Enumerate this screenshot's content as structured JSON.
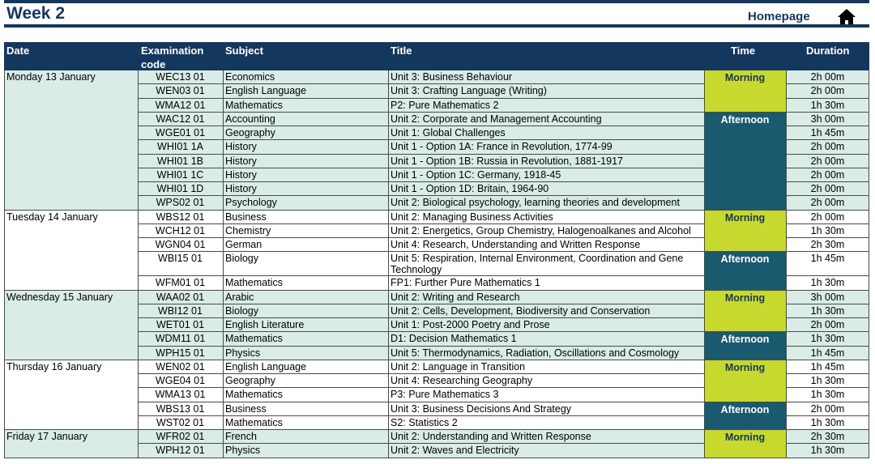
{
  "page_title": "Week 2",
  "homepage_label": "Homepage",
  "icons": {
    "home": "home-icon"
  },
  "colors": {
    "navy": "#14375e",
    "morning": "#c7d92e",
    "afternoon": "#1a5a6e",
    "light": "#d9ece6"
  },
  "headers": {
    "date": "Date",
    "code": "Examination code",
    "subject": "Subject",
    "title": "Title",
    "time": "Time",
    "duration": "Duration"
  },
  "days": [
    {
      "date": "Monday 13 January",
      "rows": [
        {
          "code": "WEC13 01",
          "subject": "Economics",
          "title": "Unit 3: Business Behaviour",
          "duration": "2h 00m"
        },
        {
          "code": "WEN03 01",
          "subject": "English Language",
          "title": "Unit 3: Crafting Language (Writing)",
          "duration": "2h 00m"
        },
        {
          "code": "WMA12 01",
          "subject": "Mathematics",
          "title": "P2: Pure Mathematics 2",
          "duration": "1h 30m"
        },
        {
          "code": "WAC12 01",
          "subject": "Accounting",
          "title": "Unit 2: Corporate and Management Accounting",
          "duration": "3h 00m"
        },
        {
          "code": "WGE01 01",
          "subject": "Geography",
          "title": "Unit 1: Global Challenges",
          "duration": "1h 45m"
        },
        {
          "code": "WHI01 1A",
          "subject": "History",
          "title": "Unit 1 - Option 1A: France in Revolution, 1774-99",
          "duration": "2h 00m"
        },
        {
          "code": "WHI01 1B",
          "subject": "History",
          "title": "Unit 1 - Option 1B: Russia in Revolution, 1881-1917",
          "duration": "2h 00m"
        },
        {
          "code": "WHI01 1C",
          "subject": "History",
          "title": "Unit 1 - Option 1C: Germany, 1918-45",
          "duration": "2h 00m"
        },
        {
          "code": "WHI01 1D",
          "subject": "History",
          "title": "Unit 1 - Option 1D: Britain, 1964-90",
          "duration": "2h 00m"
        },
        {
          "code": "WPS02 01",
          "subject": "Psychology",
          "title": "Unit 2: Biological psychology, learning theories and development",
          "duration": "2h 00m"
        }
      ],
      "sessions": [
        {
          "label": "Morning",
          "kind": "morning",
          "start": 0,
          "count": 3
        },
        {
          "label": "Afternoon",
          "kind": "afternoon",
          "start": 3,
          "count": 7
        }
      ]
    },
    {
      "date": "Tuesday 14 January",
      "rows": [
        {
          "code": "WBS12 01",
          "subject": "Business",
          "title": "Unit 2: Managing Business Activities",
          "duration": "2h 00m"
        },
        {
          "code": "WCH12 01",
          "subject": "Chemistry",
          "title": "Unit 2: Energetics, Group Chemistry, Halogenoalkanes and Alcohol",
          "duration": "1h 30m"
        },
        {
          "code": "WGN04 01",
          "subject": "German",
          "title": "Unit 4: Research, Understanding and Written Response",
          "duration": "2h 30m"
        },
        {
          "code": "WBI15 01",
          "subject": "Biology",
          "title": "Unit 5: Respiration, Internal Environment, Coordination and Gene Technology",
          "duration": "1h 45m",
          "tall": true
        },
        {
          "code": "WFM01 01",
          "subject": "Mathematics",
          "title": "FP1: Further Pure Mathematics 1",
          "duration": "1h 30m"
        }
      ],
      "sessions": [
        {
          "label": "Morning",
          "kind": "morning",
          "start": 0,
          "count": 3
        },
        {
          "label": "Afternoon",
          "kind": "afternoon",
          "start": 3,
          "count": 2
        }
      ]
    },
    {
      "date": "Wednesday 15 January",
      "rows": [
        {
          "code": "WAA02 01",
          "subject": "Arabic",
          "title": "Unit 2: Writing and Research",
          "duration": "3h 00m"
        },
        {
          "code": "WBI12 01",
          "subject": "Biology",
          "title": "Unit 2: Cells, Development, Biodiversity and Conservation",
          "duration": "1h 30m"
        },
        {
          "code": "WET01 01",
          "subject": "English Literature",
          "title": "Unit 1: Post-2000 Poetry and Prose",
          "duration": "2h 00m"
        },
        {
          "code": "WDM11 01",
          "subject": "Mathematics",
          "title": "D1: Decision Mathematics 1",
          "duration": "1h 30m"
        },
        {
          "code": "WPH15 01",
          "subject": "Physics",
          "title": "Unit 5: Thermodynamics, Radiation, Oscillations and Cosmology",
          "duration": "1h 45m"
        }
      ],
      "sessions": [
        {
          "label": "Morning",
          "kind": "morning",
          "start": 0,
          "count": 3
        },
        {
          "label": "Afternoon",
          "kind": "afternoon",
          "start": 3,
          "count": 2
        }
      ]
    },
    {
      "date": "Thursday 16 January",
      "rows": [
        {
          "code": "WEN02 01",
          "subject": "English Language",
          "title": "Unit 2: Language in Transition",
          "duration": "1h 45m"
        },
        {
          "code": "WGE04 01",
          "subject": "Geography",
          "title": "Unit 4: Researching Geography",
          "duration": "1h 30m"
        },
        {
          "code": "WMA13 01",
          "subject": "Mathematics",
          "title": "P3: Pure Mathematics 3",
          "duration": "1h 30m"
        },
        {
          "code": "WBS13 01",
          "subject": "Business",
          "title": "Unit 3: Business Decisions And Strategy",
          "duration": "2h 00m"
        },
        {
          "code": "WST02 01",
          "subject": "Mathematics",
          "title": "S2: Statistics 2",
          "duration": "1h 30m"
        }
      ],
      "sessions": [
        {
          "label": "Morning",
          "kind": "morning",
          "start": 0,
          "count": 3
        },
        {
          "label": "Afternoon",
          "kind": "afternoon",
          "start": 3,
          "count": 2
        }
      ]
    },
    {
      "date": "Friday 17 January",
      "rows": [
        {
          "code": "WFR02 01",
          "subject": "French",
          "title": "Unit 2: Understanding and Written Response",
          "duration": "2h 30m"
        },
        {
          "code": "WPH12 01",
          "subject": "Physics",
          "title": "Unit 2: Waves and Electricity",
          "duration": "1h 30m"
        }
      ],
      "sessions": [
        {
          "label": "Morning",
          "kind": "morning",
          "start": 0,
          "count": 2
        }
      ]
    }
  ]
}
